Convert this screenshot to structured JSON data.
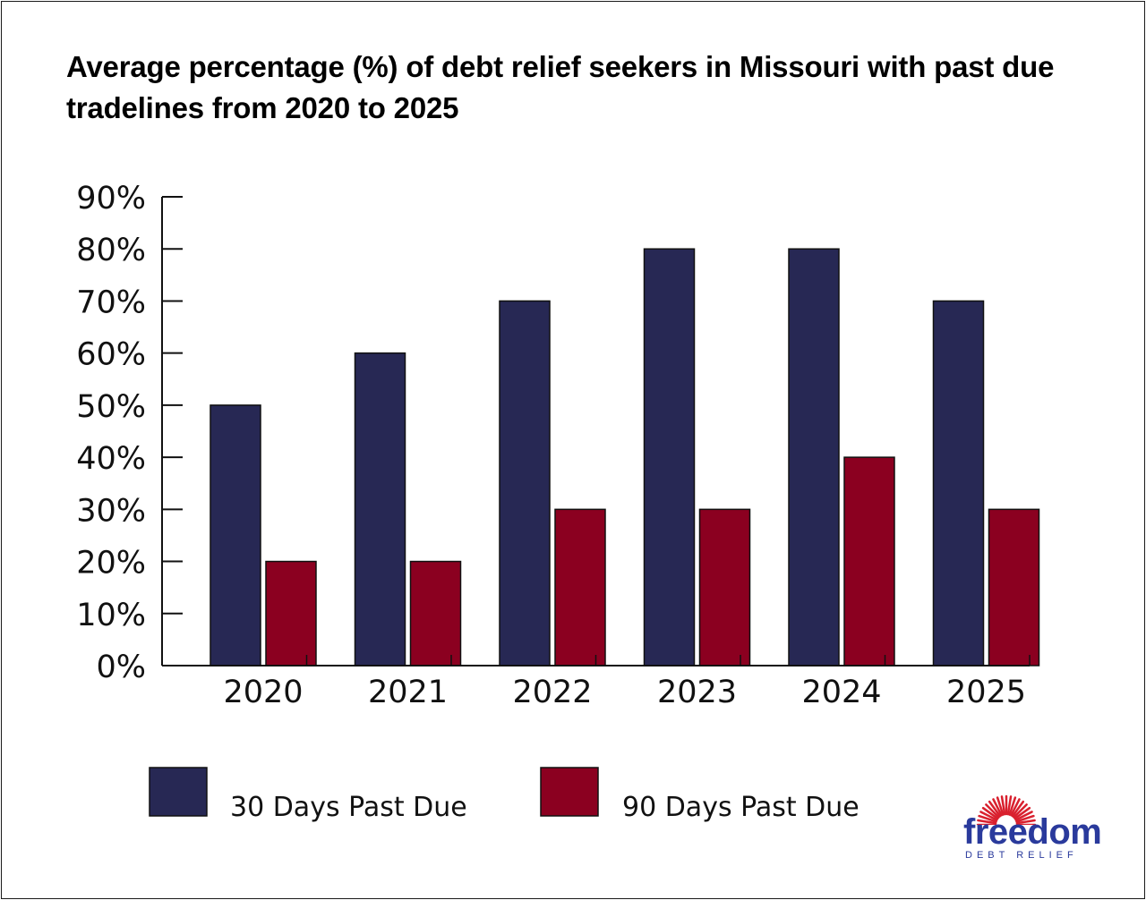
{
  "chart_data": {
    "type": "bar",
    "title": "Average percentage (%) of debt relief seekers in Missouri with past due tradelines from 2020 to 2025",
    "categories": [
      "2020",
      "2021",
      "2022",
      "2023",
      "2024",
      "2025"
    ],
    "series": [
      {
        "name": "30 Days Past Due",
        "color": "#272854",
        "values": [
          50,
          60,
          70,
          80,
          80,
          70
        ]
      },
      {
        "name": "90 Days Past Due",
        "color": "#8b0020",
        "values": [
          20,
          20,
          30,
          30,
          40,
          30
        ]
      }
    ],
    "ylim": [
      0,
      90
    ],
    "yticks": [
      "0%",
      "10%",
      "20%",
      "30%",
      "40%",
      "50%",
      "60%",
      "70%",
      "80%",
      "90%"
    ],
    "xlabel": "",
    "ylabel": "",
    "legend_position": "bottom",
    "grid": false
  },
  "logo": {
    "word": "freedom",
    "sub": "DEBT RELIEF",
    "sun_color": "#d9202e",
    "text_color": "#2a3a9c"
  }
}
